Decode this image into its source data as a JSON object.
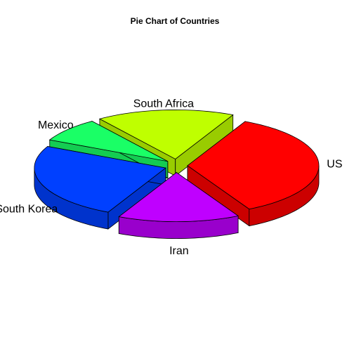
{
  "chart_data": {
    "type": "pie",
    "title": "Pie Chart of Countries",
    "three_d": true,
    "exploded": true,
    "categories": [
      "US",
      "Iran",
      "South Korea",
      "Mexico",
      "South Africa"
    ],
    "values": [
      35,
      15,
      25,
      8,
      17
    ],
    "colors": [
      "#ff0000",
      "#bf00ff",
      "#0040ff",
      "#1aff66",
      "#bfff00"
    ],
    "side_colors": [
      "#cc0000",
      "#9900cc",
      "#0033cc",
      "#14cc52",
      "#99cc00"
    ]
  }
}
